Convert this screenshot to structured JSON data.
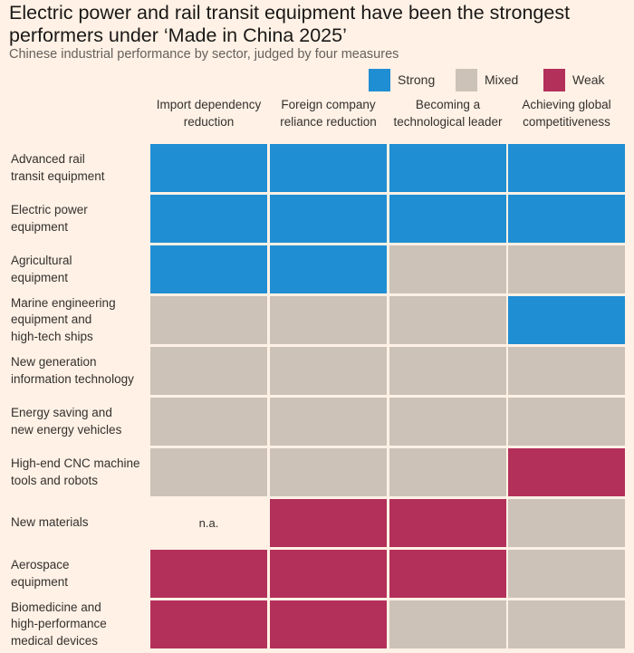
{
  "title": "Electric power and rail transit equipment have been the strongest performers under ‘Made in China 2025’",
  "subtitle": "Chinese industrial performance by sector, judged by four measures",
  "legend": {
    "strong": "Strong",
    "mixed": "Mixed",
    "weak": "Weak"
  },
  "colors": {
    "background": "#fff1e5",
    "strong": "#208ed3",
    "mixed": "#cdc2b8",
    "weak": "#b3305b",
    "na": "#fff1e5"
  },
  "chart_data": {
    "type": "heatmap",
    "categories_x": [
      "Import dependency reduction",
      "Foreign company reliance reduction",
      "Becoming a technological leader",
      "Achieving global competitiveness"
    ],
    "categories_y": [
      "Advanced rail transit equipment",
      "Electric power equipment",
      "Agricultural equipment",
      "Marine engineering equipment and high-tech ships",
      "New generation information technology",
      "Energy saving and new energy vehicles",
      "High-end CNC machine tools and robots",
      "New materials",
      "Aerospace equipment",
      "Biomedicine and high-performance medical devices"
    ],
    "values": [
      [
        "Strong",
        "Strong",
        "Strong",
        "Strong"
      ],
      [
        "Strong",
        "Strong",
        "Strong",
        "Strong"
      ],
      [
        "Strong",
        "Strong",
        "Mixed",
        "Mixed"
      ],
      [
        "Mixed",
        "Mixed",
        "Mixed",
        "Strong"
      ],
      [
        "Mixed",
        "Mixed",
        "Mixed",
        "Mixed"
      ],
      [
        "Mixed",
        "Mixed",
        "Mixed",
        "Mixed"
      ],
      [
        "Mixed",
        "Mixed",
        "Mixed",
        "Weak"
      ],
      [
        "n.a.",
        "Weak",
        "Weak",
        "Mixed"
      ],
      [
        "Weak",
        "Weak",
        "Weak",
        "Mixed"
      ],
      [
        "Weak",
        "Weak",
        "Mixed",
        "Mixed"
      ]
    ],
    "col_header_lines": [
      [
        "Import dependency",
        "reduction"
      ],
      [
        "Foreign company",
        "reliance reduction"
      ],
      [
        "Becoming a",
        "technological leader"
      ],
      [
        "Achieving global",
        "competitiveness"
      ]
    ],
    "row_label_lines": [
      [
        "Advanced rail",
        "transit equipment"
      ],
      [
        "Electric power",
        "equipment"
      ],
      [
        "Agricultural",
        "equipment"
      ],
      [
        "Marine engineering",
        "equipment and",
        "high-tech ships"
      ],
      [
        "New generation",
        "information technology"
      ],
      [
        "Energy saving and",
        "new energy vehicles"
      ],
      [
        "High-end CNC machine",
        "tools and robots"
      ],
      [
        "New materials"
      ],
      [
        "Aerospace",
        "equipment"
      ],
      [
        "Biomedicine and",
        "high-performance",
        "medical devices"
      ]
    ]
  }
}
